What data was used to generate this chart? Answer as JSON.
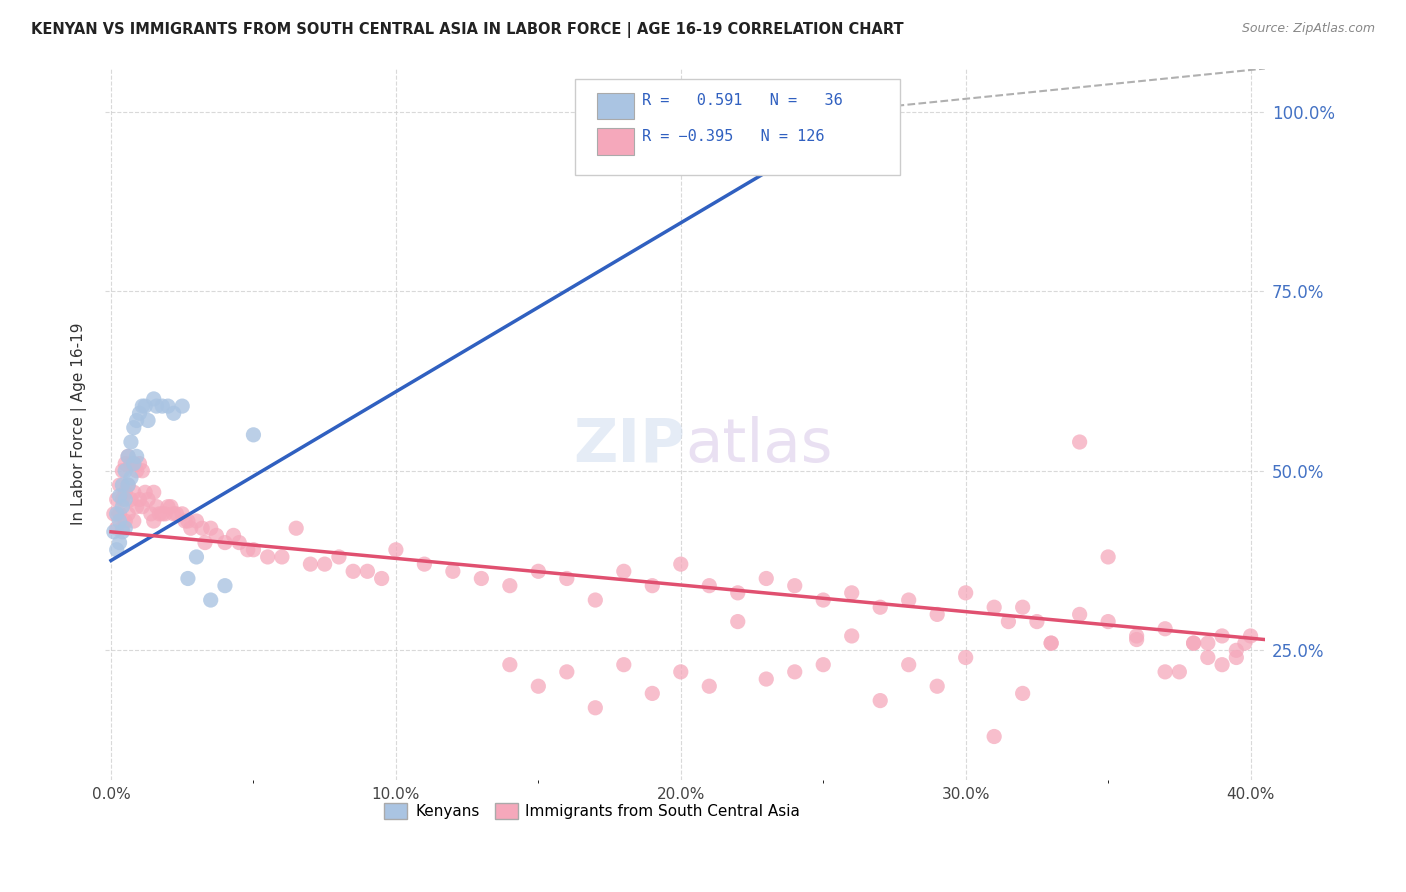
{
  "title": "KENYAN VS IMMIGRANTS FROM SOUTH CENTRAL ASIA IN LABOR FORCE | AGE 16-19 CORRELATION CHART",
  "source": "Source: ZipAtlas.com",
  "ylabel": "In Labor Force | Age 16-19",
  "x_tick_labels": [
    "0.0%",
    "",
    "10.0%",
    "",
    "20.0%",
    "",
    "30.0%",
    "",
    "40.0%"
  ],
  "x_tick_positions": [
    0.0,
    0.05,
    0.1,
    0.15,
    0.2,
    0.25,
    0.3,
    0.35,
    0.4
  ],
  "y_tick_labels": [
    "25.0%",
    "50.0%",
    "75.0%",
    "100.0%"
  ],
  "y_tick_positions": [
    0.25,
    0.5,
    0.75,
    1.0
  ],
  "xlim": [
    -0.002,
    0.405
  ],
  "ylim": [
    0.07,
    1.06
  ],
  "kenyan_R": 0.591,
  "kenyan_N": 36,
  "immigrant_R": -0.395,
  "immigrant_N": 126,
  "kenyan_color": "#aac4e2",
  "immigrant_color": "#f5a8bb",
  "kenyan_line_color": "#3060c0",
  "immigrant_line_color": "#e05070",
  "background_color": "#ffffff",
  "grid_color": "#d0d0d0",
  "kenyan_line": {
    "x0": 0.0,
    "y0": 0.375,
    "x1": 0.268,
    "y1": 1.005
  },
  "immigrant_line": {
    "x0": 0.0,
    "y0": 0.415,
    "x1": 0.405,
    "y1": 0.265
  },
  "dash_line": {
    "x0": 0.268,
    "y0": 1.005,
    "x1": 0.405,
    "y1": 1.06
  },
  "kenyan_x": [
    0.001,
    0.002,
    0.002,
    0.003,
    0.003,
    0.003,
    0.004,
    0.004,
    0.004,
    0.005,
    0.005,
    0.005,
    0.006,
    0.006,
    0.007,
    0.007,
    0.008,
    0.008,
    0.009,
    0.009,
    0.01,
    0.011,
    0.012,
    0.013,
    0.015,
    0.016,
    0.018,
    0.02,
    0.022,
    0.025,
    0.027,
    0.03,
    0.035,
    0.04,
    0.05,
    0.27
  ],
  "kenyan_y": [
    0.415,
    0.44,
    0.39,
    0.465,
    0.43,
    0.4,
    0.48,
    0.45,
    0.415,
    0.5,
    0.46,
    0.42,
    0.52,
    0.48,
    0.54,
    0.49,
    0.56,
    0.51,
    0.57,
    0.52,
    0.58,
    0.59,
    0.59,
    0.57,
    0.6,
    0.59,
    0.59,
    0.59,
    0.58,
    0.59,
    0.35,
    0.38,
    0.32,
    0.34,
    0.55,
    1.005
  ],
  "immigrant_x": [
    0.001,
    0.002,
    0.002,
    0.003,
    0.003,
    0.004,
    0.004,
    0.004,
    0.005,
    0.005,
    0.005,
    0.006,
    0.006,
    0.006,
    0.007,
    0.007,
    0.008,
    0.008,
    0.008,
    0.009,
    0.009,
    0.01,
    0.01,
    0.011,
    0.011,
    0.012,
    0.013,
    0.014,
    0.015,
    0.015,
    0.016,
    0.017,
    0.018,
    0.019,
    0.02,
    0.021,
    0.022,
    0.023,
    0.025,
    0.026,
    0.027,
    0.028,
    0.03,
    0.032,
    0.033,
    0.035,
    0.037,
    0.04,
    0.043,
    0.045,
    0.048,
    0.05,
    0.055,
    0.06,
    0.065,
    0.07,
    0.075,
    0.08,
    0.085,
    0.09,
    0.095,
    0.1,
    0.11,
    0.12,
    0.13,
    0.14,
    0.15,
    0.16,
    0.17,
    0.18,
    0.19,
    0.2,
    0.21,
    0.22,
    0.23,
    0.24,
    0.25,
    0.26,
    0.27,
    0.28,
    0.29,
    0.3,
    0.31,
    0.315,
    0.32,
    0.325,
    0.33,
    0.34,
    0.35,
    0.36,
    0.37,
    0.375,
    0.38,
    0.385,
    0.39,
    0.395,
    0.398,
    0.4,
    0.395,
    0.39,
    0.385,
    0.38,
    0.37,
    0.36,
    0.35,
    0.34,
    0.33,
    0.32,
    0.31,
    0.3,
    0.29,
    0.28,
    0.27,
    0.26,
    0.25,
    0.24,
    0.23,
    0.22,
    0.21,
    0.2,
    0.19,
    0.18,
    0.17,
    0.16,
    0.15,
    0.14
  ],
  "immigrant_y": [
    0.44,
    0.46,
    0.42,
    0.48,
    0.44,
    0.5,
    0.46,
    0.42,
    0.51,
    0.47,
    0.43,
    0.52,
    0.48,
    0.44,
    0.51,
    0.46,
    0.51,
    0.47,
    0.43,
    0.5,
    0.45,
    0.51,
    0.46,
    0.5,
    0.45,
    0.47,
    0.46,
    0.44,
    0.47,
    0.43,
    0.45,
    0.44,
    0.44,
    0.44,
    0.45,
    0.45,
    0.44,
    0.44,
    0.44,
    0.43,
    0.43,
    0.42,
    0.43,
    0.42,
    0.4,
    0.42,
    0.41,
    0.4,
    0.41,
    0.4,
    0.39,
    0.39,
    0.38,
    0.38,
    0.42,
    0.37,
    0.37,
    0.38,
    0.36,
    0.36,
    0.35,
    0.39,
    0.37,
    0.36,
    0.35,
    0.34,
    0.36,
    0.35,
    0.32,
    0.36,
    0.34,
    0.37,
    0.34,
    0.33,
    0.35,
    0.34,
    0.32,
    0.33,
    0.31,
    0.32,
    0.3,
    0.33,
    0.31,
    0.29,
    0.31,
    0.29,
    0.26,
    0.3,
    0.29,
    0.265,
    0.28,
    0.22,
    0.26,
    0.24,
    0.27,
    0.25,
    0.26,
    0.27,
    0.24,
    0.23,
    0.26,
    0.26,
    0.22,
    0.27,
    0.38,
    0.54,
    0.26,
    0.19,
    0.13,
    0.24,
    0.2,
    0.23,
    0.18,
    0.27,
    0.23,
    0.22,
    0.21,
    0.29,
    0.2,
    0.22,
    0.19,
    0.23,
    0.17,
    0.22,
    0.2,
    0.23
  ]
}
